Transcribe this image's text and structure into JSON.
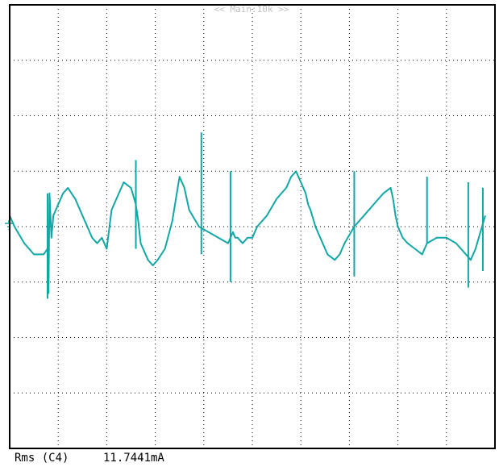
{
  "header": {
    "timebase_label": "<< Main:10k >>"
  },
  "readout": {
    "label": "Rms (C4)",
    "value": "11.7441mA"
  },
  "colors": {
    "trace": "#11a7a7",
    "grid": "#000000",
    "frame": "#000000",
    "marker": "#11a7a7",
    "header_text": "#c0c0c0"
  },
  "chart_data": {
    "type": "line",
    "title": "",
    "xlabel": "",
    "ylabel": "",
    "grid": true,
    "divisions": {
      "x": 10,
      "y": 8
    },
    "xlim": [
      0,
      10
    ],
    "ylim": [
      -4,
      4
    ],
    "series": [
      {
        "channel": "C4",
        "x": [
          0,
          0.1,
          0.3,
          0.5,
          0.7,
          0.78,
          0.8,
          0.82,
          0.86,
          0.9,
          0.95,
          1.0,
          1.1,
          1.2,
          1.35,
          1.5,
          1.6,
          1.65,
          1.7,
          1.8,
          1.9,
          2.0,
          2.1,
          2.2,
          2.35,
          2.5,
          2.6,
          2.65,
          2.7,
          2.85,
          2.95,
          3.05,
          3.2,
          3.35,
          3.5,
          3.6,
          3.7,
          3.9,
          4.1,
          4.3,
          4.5,
          4.6,
          4.65,
          4.7,
          4.8,
          4.9,
          5.0,
          5.1,
          5.3,
          5.5,
          5.7,
          5.8,
          5.9,
          6.0,
          6.1,
          6.15,
          6.2,
          6.3,
          6.4,
          6.55,
          6.7,
          6.8,
          6.9,
          7.1,
          7.3,
          7.5,
          7.7,
          7.85,
          7.9,
          7.95,
          8.0,
          8.1,
          8.2,
          8.35,
          8.5,
          8.6,
          8.8,
          9.0,
          9.2,
          9.4,
          9.5,
          9.55,
          9.6,
          9.7,
          9.8
        ],
        "y": [
          0.2,
          0.0,
          -0.3,
          -0.5,
          -0.5,
          -0.4,
          -1.2,
          0.6,
          -0.2,
          0.2,
          0.3,
          0.4,
          0.6,
          0.7,
          0.5,
          0.2,
          0.0,
          -0.1,
          -0.2,
          -0.3,
          -0.2,
          -0.4,
          0.3,
          0.5,
          0.8,
          0.7,
          0.4,
          0.1,
          -0.3,
          -0.6,
          -0.7,
          -0.6,
          -0.4,
          0.1,
          0.9,
          0.7,
          0.3,
          0.0,
          -0.1,
          -0.2,
          -0.3,
          -0.1,
          -0.2,
          -0.2,
          -0.3,
          -0.2,
          -0.2,
          0.0,
          0.2,
          0.5,
          0.7,
          0.9,
          1.0,
          0.8,
          0.6,
          0.4,
          0.3,
          0.0,
          -0.2,
          -0.5,
          -0.6,
          -0.5,
          -0.3,
          0.0,
          0.2,
          0.4,
          0.6,
          0.7,
          0.5,
          0.2,
          0.0,
          -0.2,
          -0.3,
          -0.4,
          -0.5,
          -0.3,
          -0.2,
          -0.2,
          -0.3,
          -0.5,
          -0.6,
          -0.5,
          -0.4,
          -0.1,
          0.2
        ],
        "spikes": [
          {
            "x": 0.78,
            "y_low": -1.3,
            "y_high": 0.6
          },
          {
            "x": 2.6,
            "y_low": -0.4,
            "y_high": 1.2
          },
          {
            "x": 3.95,
            "y_low": -0.5,
            "y_high": 1.7
          },
          {
            "x": 4.55,
            "y_low": -1.0,
            "y_high": 1.0
          },
          {
            "x": 7.1,
            "y_low": -0.9,
            "y_high": 1.0
          },
          {
            "x": 8.6,
            "y_low": -0.3,
            "y_high": 0.9
          },
          {
            "x": 9.45,
            "y_low": -1.1,
            "y_high": 0.8
          },
          {
            "x": 9.75,
            "y_low": -0.8,
            "y_high": 0.7
          }
        ]
      }
    ]
  }
}
